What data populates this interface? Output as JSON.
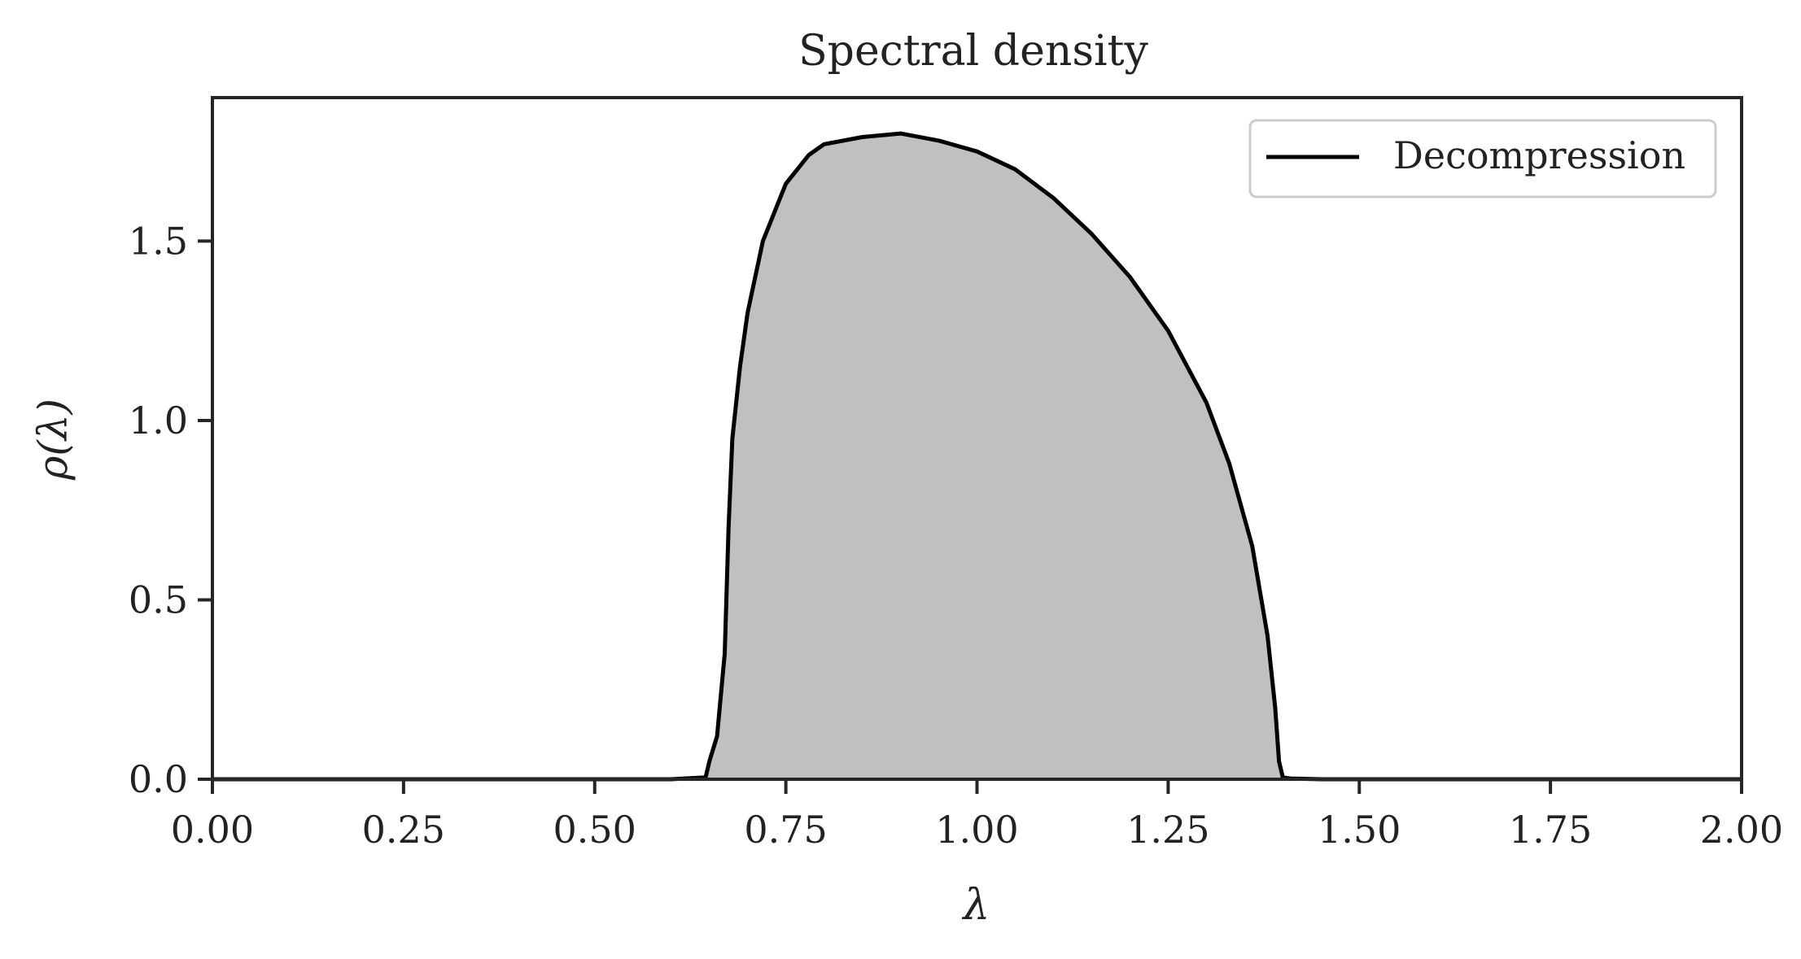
{
  "chart_data": {
    "type": "area",
    "title": "Spectral density",
    "xlabel": "λ",
    "ylabel": "ρ(λ)",
    "xlim": [
      0.0,
      2.0
    ],
    "ylim": [
      0.0,
      1.9
    ],
    "xticks": [
      0.0,
      0.25,
      0.5,
      0.75,
      1.0,
      1.25,
      1.5,
      1.75,
      2.0
    ],
    "xtick_labels": [
      "0.00",
      "0.25",
      "0.50",
      "0.75",
      "1.00",
      "1.25",
      "1.50",
      "1.75",
      "2.00"
    ],
    "yticks": [
      0.0,
      0.5,
      1.0,
      1.5
    ],
    "ytick_labels": [
      "0.0",
      "0.5",
      "1.0",
      "1.5"
    ],
    "grid": false,
    "legend": {
      "position": "top-right",
      "entries": [
        "Decompression"
      ]
    },
    "colors": {
      "line": "#000000",
      "fill": "#c0c0c0",
      "axes": "#262626"
    },
    "series": [
      {
        "name": "Decompression",
        "x": [
          0.0,
          0.6,
          0.645,
          0.65,
          0.66,
          0.67,
          0.675,
          0.68,
          0.69,
          0.7,
          0.72,
          0.75,
          0.78,
          0.8,
          0.85,
          0.9,
          0.95,
          1.0,
          1.05,
          1.1,
          1.15,
          1.2,
          1.25,
          1.3,
          1.33,
          1.36,
          1.38,
          1.39,
          1.395,
          1.4,
          1.41,
          1.45,
          2.0
        ],
        "y": [
          0.0,
          0.0,
          0.005,
          0.05,
          0.12,
          0.35,
          0.7,
          0.95,
          1.15,
          1.3,
          1.5,
          1.66,
          1.74,
          1.77,
          1.79,
          1.8,
          1.78,
          1.75,
          1.7,
          1.62,
          1.52,
          1.4,
          1.25,
          1.05,
          0.88,
          0.65,
          0.4,
          0.2,
          0.05,
          0.005,
          0.002,
          0.0,
          0.0
        ]
      }
    ]
  }
}
